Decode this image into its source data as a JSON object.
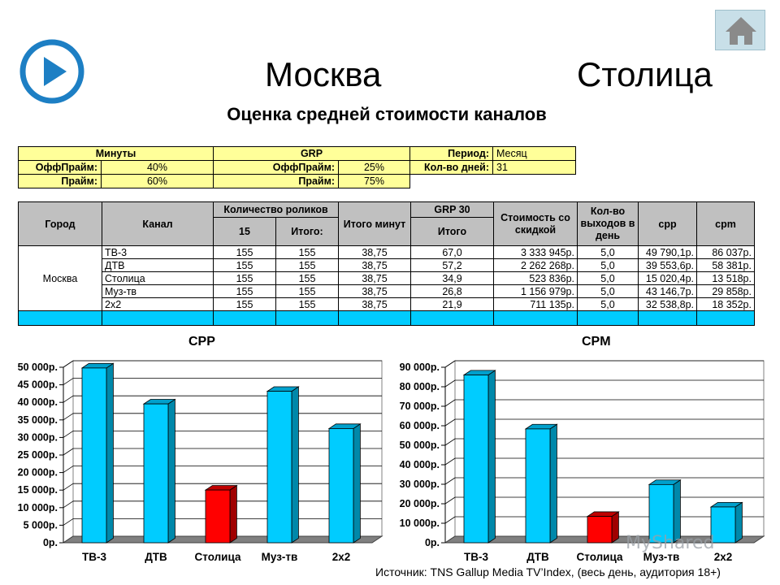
{
  "header": {
    "title_left": "Москва",
    "title_right": "Столица",
    "subtitle": "Оценка средней стоимости каналов"
  },
  "settings": {
    "minutes_header": "Минуты",
    "grp_header": "GRP",
    "period_label": "Период:",
    "period_value": "Месяц",
    "days_label": "Кол-во дней:",
    "days_value": "31",
    "offprime_label": "ОффПрайм:",
    "prime_label": "Прайм:",
    "minutes_offprime": "40%",
    "minutes_prime": "60%",
    "grp_offprime": "25%",
    "grp_prime": "75%"
  },
  "table": {
    "headers": {
      "city": "Город",
      "channel": "Канал",
      "spots": "Количество роликов",
      "spots_15": "15",
      "spots_total": "Итого:",
      "total_minutes": "Итого минут",
      "grp30": "GRP 30",
      "grp_total": "Итого",
      "cost": "Стоимость со скидкой",
      "outputs": "Кол-во выходов в день",
      "cpp": "cpp",
      "cpm": "cpm"
    },
    "city": "Москва",
    "rows": [
      {
        "channel": "ТВ-3",
        "s15": "155",
        "stotal": "155",
        "minutes": "38,75",
        "grp": "67,0",
        "cost": "3 333 945р.",
        "outputs": "5,0",
        "cpp": "49 790,1р.",
        "cpm": "86 037р."
      },
      {
        "channel": "ДТВ",
        "s15": "155",
        "stotal": "155",
        "minutes": "38,75",
        "grp": "57,2",
        "cost": "2 262 268р.",
        "outputs": "5,0",
        "cpp": "39 553,6р.",
        "cpm": "58 381р."
      },
      {
        "channel": "Столица",
        "s15": "155",
        "stotal": "155",
        "minutes": "38,75",
        "grp": "34,9",
        "cost": "523 836р.",
        "outputs": "5,0",
        "cpp": "15 020,4р.",
        "cpm": "13 518р."
      },
      {
        "channel": "Муз-тв",
        "s15": "155",
        "stotal": "155",
        "minutes": "38,75",
        "grp": "26,8",
        "cost": "1 156 979р.",
        "outputs": "5,0",
        "cpp": "43 146,7р.",
        "cpm": "29 858р."
      },
      {
        "channel": "2х2",
        "s15": "155",
        "stotal": "155",
        "minutes": "38,75",
        "grp": "21,9",
        "cost": "711 135р.",
        "outputs": "5,0",
        "cpp": "32 538,8р.",
        "cpm": "18 352р."
      }
    ]
  },
  "chart_data": [
    {
      "type": "bar",
      "title": "CPP",
      "categories": [
        "ТВ-3",
        "ДТВ",
        "Столица",
        "Муз-тв",
        "2х2"
      ],
      "values": [
        49790.1,
        39553.6,
        15020.4,
        43146.7,
        32538.8
      ],
      "ylim": [
        0,
        50000
      ],
      "yticks": [
        "0р.",
        "5 000р.",
        "10 000р.",
        "15 000р.",
        "20 000р.",
        "25 000р.",
        "30 000р.",
        "35 000р.",
        "40 000р.",
        "45 000р.",
        "50 000р."
      ],
      "grid": true,
      "colors": {
        "default": "#00ccff",
        "highlight": "#ff0000"
      },
      "highlight_index": 2
    },
    {
      "type": "bar",
      "title": "CPM",
      "categories": [
        "ТВ-3",
        "ДТВ",
        "Столица",
        "Муз-тв",
        "2х2"
      ],
      "values": [
        86037,
        58381,
        13518,
        29858,
        18352
      ],
      "ylim": [
        0,
        90000
      ],
      "yticks": [
        "0р.",
        "10 000р.",
        "20 000р.",
        "30 000р.",
        "40 000р.",
        "50 000р.",
        "60 000р.",
        "70 000р.",
        "80 000р.",
        "90 000р."
      ],
      "grid": true,
      "colors": {
        "default": "#00ccff",
        "highlight": "#ff0000"
      },
      "highlight_index": 2
    }
  ],
  "source": "Источник: TNS Gallup Media TV’Index, (весь день, аудитория 18+)",
  "watermark": "MyShared",
  "icons": {
    "play": "play-icon",
    "home": "home-icon"
  }
}
